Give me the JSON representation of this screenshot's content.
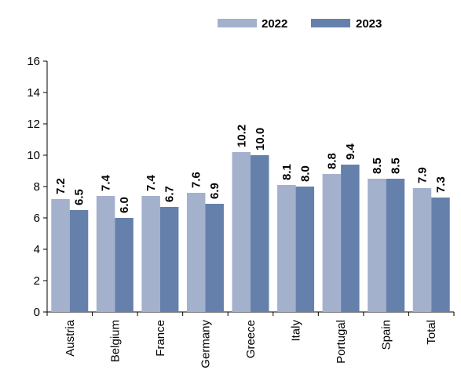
{
  "chart_data": {
    "type": "bar",
    "categories": [
      "Austria",
      "Belgium",
      "France",
      "Germany",
      "Greece",
      "Italy",
      "Portugal",
      "Spain",
      "Total"
    ],
    "series": [
      {
        "name": "2022",
        "values": [
          7.2,
          7.4,
          7.4,
          7.6,
          10.2,
          8.1,
          8.8,
          8.5,
          7.9
        ],
        "labels": [
          "7.2",
          "7.4",
          "7.4",
          "7.6",
          "10.2",
          "8.1",
          "8.8",
          "8.5",
          "7.9"
        ],
        "color": "#a3b1cd"
      },
      {
        "name": "2023",
        "values": [
          6.5,
          6.0,
          6.7,
          6.9,
          10.0,
          8.0,
          9.4,
          8.5,
          7.3
        ],
        "labels": [
          "6.5",
          "6.0",
          "6.7",
          "6.9",
          "10.0",
          "8.0",
          "9.4",
          "8.5",
          "7.3"
        ],
        "color": "#6680ac"
      }
    ],
    "yticks": [
      "0",
      "2",
      "4",
      "6",
      "8",
      "10",
      "12",
      "14",
      "16"
    ],
    "ylim": [
      0,
      16
    ],
    "grid": false,
    "legend": "top-right",
    "title": "",
    "xlabel": "",
    "ylabel": ""
  }
}
